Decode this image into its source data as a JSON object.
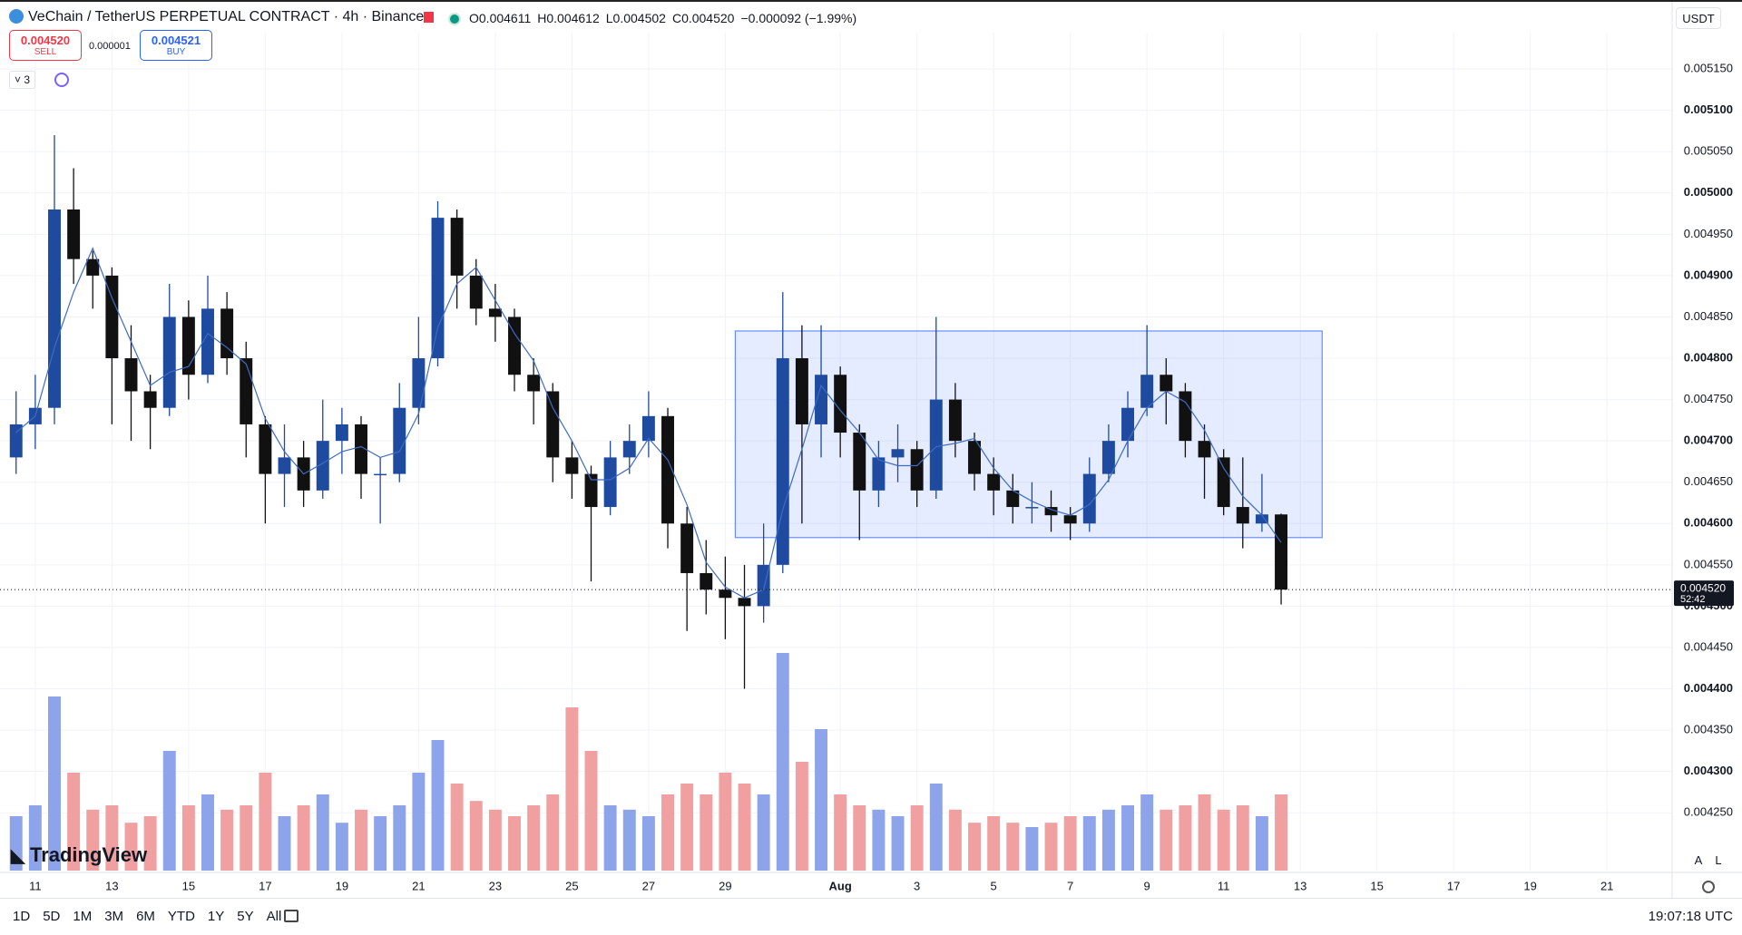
{
  "header": {
    "title": "VeChain / TetherUS PERPETUAL CONTRACT · 4h · Binance",
    "ohlc": [
      "O0.004611",
      "H0.004612",
      "L0.004502",
      "C0.004520",
      "−0.000092 (−1.99%)"
    ],
    "sell_price": "0.004520",
    "sell": "SELL",
    "spread": "0.000001",
    "buy_price": "0.004521",
    "buy": "BUY",
    "indicators": "3",
    "currency": "USDT"
  },
  "chart_data": {
    "type": "candlestick",
    "x": [
      -0.5,
      0,
      0.5,
      1,
      1.5,
      2,
      2.5,
      3,
      3.5,
      4,
      4.5,
      5,
      5.5,
      6,
      6.5,
      7,
      7.5,
      8,
      8.5,
      9,
      9.5,
      10,
      10.5,
      11,
      11.5,
      12,
      12.5,
      13,
      13.5,
      14,
      14.5,
      15,
      15.5,
      16,
      16.5,
      17,
      17.5,
      18,
      18.5,
      19,
      19.5,
      20,
      20.5,
      21,
      21.5,
      22,
      22.5,
      23,
      23.5,
      24,
      24.5,
      25,
      25.5,
      26,
      26.5,
      27,
      27.5,
      28,
      28.5,
      29,
      29.5,
      30,
      30.5,
      31,
      31.5,
      32,
      32.5
    ],
    "ohlc": [
      [
        0.00468,
        0.00476,
        0.00466,
        0.00472
      ],
      [
        0.00472,
        0.00478,
        0.00469,
        0.00474
      ],
      [
        0.00474,
        0.00507,
        0.00472,
        0.00498
      ],
      [
        0.00498,
        0.00503,
        0.00489,
        0.00492
      ],
      [
        0.00492,
        0.00493,
        0.00486,
        0.0049
      ],
      [
        0.0049,
        0.00491,
        0.00472,
        0.0048
      ],
      [
        0.0048,
        0.00484,
        0.0047,
        0.00476
      ],
      [
        0.00476,
        0.00478,
        0.00469,
        0.00474
      ],
      [
        0.00474,
        0.00489,
        0.00473,
        0.00485
      ],
      [
        0.00485,
        0.00487,
        0.00475,
        0.00478
      ],
      [
        0.00478,
        0.0049,
        0.00477,
        0.00486
      ],
      [
        0.00486,
        0.00488,
        0.00478,
        0.0048
      ],
      [
        0.0048,
        0.00482,
        0.00468,
        0.00472
      ],
      [
        0.00472,
        0.00473,
        0.0046,
        0.00466
      ],
      [
        0.00466,
        0.00472,
        0.00462,
        0.00468
      ],
      [
        0.00468,
        0.0047,
        0.00462,
        0.00464
      ],
      [
        0.00464,
        0.00475,
        0.00463,
        0.0047
      ],
      [
        0.0047,
        0.00474,
        0.00466,
        0.00472
      ],
      [
        0.00472,
        0.00473,
        0.00463,
        0.00466
      ],
      [
        0.00466,
        0.00468,
        0.0046,
        0.00466
      ],
      [
        0.00466,
        0.00477,
        0.00465,
        0.00474
      ],
      [
        0.00474,
        0.00485,
        0.00472,
        0.0048
      ],
      [
        0.0048,
        0.00499,
        0.00479,
        0.00497
      ],
      [
        0.00497,
        0.00498,
        0.00486,
        0.0049
      ],
      [
        0.0049,
        0.00492,
        0.00484,
        0.00486
      ],
      [
        0.00486,
        0.00489,
        0.00482,
        0.00485
      ],
      [
        0.00485,
        0.00486,
        0.00476,
        0.00478
      ],
      [
        0.00478,
        0.0048,
        0.00472,
        0.00476
      ],
      [
        0.00476,
        0.00477,
        0.00465,
        0.00468
      ],
      [
        0.00468,
        0.0047,
        0.00463,
        0.00466
      ],
      [
        0.00466,
        0.00467,
        0.00453,
        0.00462
      ],
      [
        0.00462,
        0.0047,
        0.00461,
        0.00468
      ],
      [
        0.00468,
        0.00472,
        0.00466,
        0.0047
      ],
      [
        0.0047,
        0.00476,
        0.00468,
        0.00473
      ],
      [
        0.00473,
        0.00474,
        0.00457,
        0.0046
      ],
      [
        0.0046,
        0.00462,
        0.00447,
        0.00454
      ],
      [
        0.00454,
        0.00458,
        0.00449,
        0.00452
      ],
      [
        0.00452,
        0.00456,
        0.00446,
        0.00451
      ],
      [
        0.00451,
        0.00455,
        0.0044,
        0.0045
      ],
      [
        0.0045,
        0.0046,
        0.00448,
        0.00455
      ],
      [
        0.00455,
        0.00488,
        0.00454,
        0.0048
      ],
      [
        0.0048,
        0.00484,
        0.0046,
        0.00472
      ],
      [
        0.00472,
        0.00484,
        0.00468,
        0.00478
      ],
      [
        0.00478,
        0.00479,
        0.00468,
        0.00471
      ],
      [
        0.00471,
        0.00472,
        0.00458,
        0.00464
      ],
      [
        0.00464,
        0.0047,
        0.00462,
        0.00468
      ],
      [
        0.00468,
        0.00472,
        0.00465,
        0.00469
      ],
      [
        0.00469,
        0.0047,
        0.00462,
        0.00464
      ],
      [
        0.00464,
        0.00485,
        0.00463,
        0.00475
      ],
      [
        0.00475,
        0.00477,
        0.00468,
        0.0047
      ],
      [
        0.0047,
        0.00471,
        0.00464,
        0.00466
      ],
      [
        0.00466,
        0.00468,
        0.00461,
        0.00464
      ],
      [
        0.00464,
        0.00466,
        0.0046,
        0.00462
      ],
      [
        0.00462,
        0.00465,
        0.0046,
        0.00462
      ],
      [
        0.00462,
        0.00464,
        0.00459,
        0.00461
      ],
      [
        0.00461,
        0.00462,
        0.00458,
        0.0046
      ],
      [
        0.0046,
        0.00468,
        0.00459,
        0.00466
      ],
      [
        0.00466,
        0.00472,
        0.00465,
        0.0047
      ],
      [
        0.0047,
        0.00476,
        0.00468,
        0.00474
      ],
      [
        0.00474,
        0.00484,
        0.00473,
        0.00478
      ],
      [
        0.00478,
        0.0048,
        0.00472,
        0.00476
      ],
      [
        0.00476,
        0.00477,
        0.00468,
        0.0047
      ],
      [
        0.0047,
        0.00472,
        0.00463,
        0.00468
      ],
      [
        0.00468,
        0.00469,
        0.00461,
        0.00462
      ],
      [
        0.00462,
        0.00468,
        0.00457,
        0.0046
      ],
      [
        0.0046,
        0.00466,
        0.00459,
        0.004611
      ],
      [
        0.004611,
        0.004612,
        0.004502,
        0.00452
      ]
    ],
    "volume": [
      25,
      30,
      80,
      45,
      28,
      30,
      22,
      25,
      55,
      30,
      35,
      28,
      30,
      45,
      25,
      30,
      35,
      22,
      28,
      25,
      30,
      45,
      60,
      40,
      32,
      28,
      25,
      30,
      35,
      75,
      55,
      30,
      28,
      25,
      35,
      40,
      35,
      45,
      40,
      35,
      100,
      50,
      65,
      35,
      30,
      28,
      25,
      30,
      40,
      28,
      22,
      25,
      22,
      20,
      22,
      25,
      25,
      28,
      30,
      35,
      28,
      30,
      35,
      28,
      30,
      25,
      35
    ],
    "ma": [
      0.00471,
      0.00473,
      0.004813,
      0.00488,
      0.004933,
      0.004873,
      0.00482,
      0.004767,
      0.004783,
      0.00479,
      0.00483,
      0.004813,
      0.004793,
      0.004727,
      0.004687,
      0.00466,
      0.004673,
      0.004687,
      0.004693,
      0.00468,
      0.004687,
      0.004733,
      0.004837,
      0.00489,
      0.00491,
      0.00487,
      0.00483,
      0.004797,
      0.00474,
      0.0047,
      0.004653,
      0.004653,
      0.004667,
      0.004703,
      0.004677,
      0.004623,
      0.004553,
      0.004523,
      0.00451,
      0.00452,
      0.004617,
      0.00469,
      0.004767,
      0.004737,
      0.00471,
      0.004677,
      0.00467,
      0.00467,
      0.004693,
      0.004697,
      0.004703,
      0.004667,
      0.00464,
      0.004627,
      0.004617,
      0.00461,
      0.004623,
      0.004653,
      0.0047,
      0.00474,
      0.00476,
      0.004747,
      0.004713,
      0.004667,
      0.004633,
      0.00461,
      0.004577
    ],
    "colors": {
      "up": "#1e4aa0",
      "down": "#111111",
      "volume_up": "#8ea4ea",
      "volume_down": "#f0a0a0",
      "ma": "#3f6bc4",
      "box": "#2962ff"
    },
    "range_box": {
      "x": [
        18.26,
        33.57
      ],
      "y": [
        0.004583,
        0.004833
      ]
    },
    "last_price": {
      "value": 0.00452,
      "label": "0.004520"
    },
    "countdown": "52:42",
    "watermark": "TradingView",
    "grid": true,
    "xlim": [
      -0.92,
      42.7
    ],
    "ylim": [
      0.00418,
      0.005194
    ],
    "xticks": [
      {
        "value": 0,
        "label": "11"
      },
      {
        "value": 2,
        "label": "13"
      },
      {
        "value": 4,
        "label": "15"
      },
      {
        "value": 6,
        "label": "17"
      },
      {
        "value": 8,
        "label": "19"
      },
      {
        "value": 10,
        "label": "21"
      },
      {
        "value": 12,
        "label": "23"
      },
      {
        "value": 14,
        "label": "25"
      },
      {
        "value": 16,
        "label": "27"
      },
      {
        "value": 18,
        "label": "29"
      },
      {
        "value": 21,
        "label": "Aug"
      },
      {
        "value": 23,
        "label": "3"
      },
      {
        "value": 25,
        "label": "5"
      },
      {
        "value": 27,
        "label": "7"
      },
      {
        "value": 29,
        "label": "9"
      },
      {
        "value": 31,
        "label": "11"
      },
      {
        "value": 33,
        "label": "13"
      },
      {
        "value": 35,
        "label": "15"
      },
      {
        "value": 37,
        "label": "17"
      },
      {
        "value": 39,
        "label": "19"
      },
      {
        "value": 41,
        "label": "21"
      }
    ],
    "yticks": [
      {
        "value": 0.00515,
        "label": "0.005150"
      },
      {
        "value": 0.0051,
        "label": "0.005100"
      },
      {
        "value": 0.00505,
        "label": "0.005050"
      },
      {
        "value": 0.005,
        "label": "0.005000"
      },
      {
        "value": 0.00495,
        "label": "0.004950"
      },
      {
        "value": 0.0049,
        "label": "0.004900"
      },
      {
        "value": 0.00485,
        "label": "0.004850"
      },
      {
        "value": 0.0048,
        "label": "0.004800"
      },
      {
        "value": 0.00475,
        "label": "0.004750"
      },
      {
        "value": 0.0047,
        "label": "0.004700"
      },
      {
        "value": 0.00465,
        "label": "0.004650"
      },
      {
        "value": 0.0046,
        "label": "0.004600"
      },
      {
        "value": 0.00455,
        "label": "0.004550"
      },
      {
        "value": 0.0045,
        "label": "0.004500"
      },
      {
        "value": 0.00445,
        "label": "0.004450"
      },
      {
        "value": 0.0044,
        "label": "0.004400"
      },
      {
        "value": 0.00435,
        "label": "0.004350"
      },
      {
        "value": 0.0043,
        "label": "0.004300"
      },
      {
        "value": 0.00425,
        "label": "0.004250"
      }
    ]
  },
  "toolbar": {
    "ranges": [
      "1D",
      "5D",
      "1M",
      "3M",
      "6M",
      "YTD",
      "1Y",
      "5Y",
      "All"
    ],
    "time": "19:07:18 UTC",
    "scale_buttons": [
      "A",
      "L"
    ]
  }
}
